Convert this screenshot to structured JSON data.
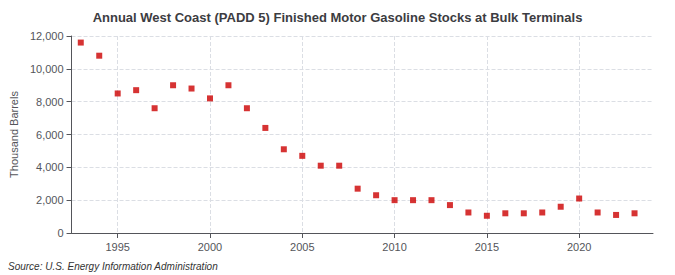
{
  "chart_data": {
    "type": "scatter",
    "title": "Annual West Coast (PADD 5) Finished Motor Gasoline Stocks at Bulk Terminals",
    "ylabel": "Thousand Barrels",
    "annotation": "Source: U.S. Energy Information Administration",
    "x": [
      1993,
      1994,
      1995,
      1996,
      1997,
      1998,
      1999,
      2000,
      2001,
      2002,
      2003,
      2004,
      2005,
      2006,
      2007,
      2008,
      2009,
      2010,
      2011,
      2012,
      2013,
      2014,
      2015,
      2016,
      2017,
      2018,
      2019,
      2020,
      2021,
      2022,
      2023
    ],
    "values": [
      11600,
      10800,
      8500,
      8700,
      7600,
      9000,
      8800,
      8200,
      9000,
      7600,
      6400,
      5100,
      4700,
      4100,
      4100,
      2700,
      2300,
      2000,
      2000,
      2000,
      1700,
      1250,
      1050,
      1200,
      1200,
      1250,
      1600,
      2100,
      1250,
      1100,
      1200
    ],
    "color": "#cc0000",
    "marker": "square",
    "xlim": [
      1992.5,
      2024
    ],
    "xticks": [
      1995,
      2000,
      2005,
      2010,
      2015,
      2020
    ],
    "ylim": [
      0,
      12000
    ],
    "yticks": [
      0,
      {
        "value": 2000,
        "label": "2,000"
      },
      {
        "value": 4000,
        "label": "4,000"
      },
      {
        "value": 6000,
        "label": "6,000"
      },
      {
        "value": 8000,
        "label": "8,000"
      },
      {
        "value": 10000,
        "label": "10,000"
      },
      {
        "value": 12000,
        "label": "12,000"
      }
    ],
    "grid": true
  }
}
